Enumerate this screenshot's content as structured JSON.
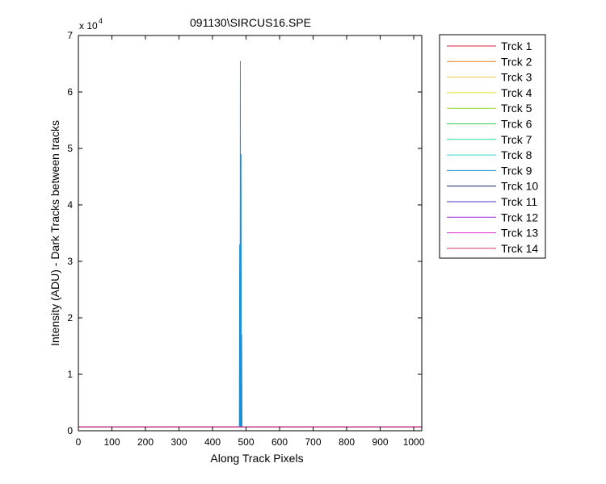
{
  "chart_data": {
    "type": "line",
    "title": "091130\\SIRCUS16.SPE",
    "xlabel": "Along Track Pixels",
    "ylabel": "Intensity (ADU) - Dark Tracks between tracks",
    "y_exponent_label": "x 10",
    "y_exponent": "4",
    "xlim": [
      0,
      1024
    ],
    "ylim": [
      0,
      70000
    ],
    "x_ticks": [
      0,
      100,
      200,
      300,
      400,
      500,
      600,
      700,
      800,
      900,
      1000
    ],
    "y_ticks": [
      0,
      10000,
      20000,
      30000,
      40000,
      50000,
      60000,
      70000
    ],
    "y_tick_labels": [
      "0",
      "1",
      "2",
      "3",
      "4",
      "5",
      "6",
      "7"
    ],
    "grid": false,
    "legend_position": "outside-top-right",
    "baseline_value": 700,
    "series": [
      {
        "name": "Trck 1",
        "color": "#dd1f3a"
      },
      {
        "name": "Trck 2",
        "color": "#f07d1e"
      },
      {
        "name": "Trck 3",
        "color": "#f5c542"
      },
      {
        "name": "Trck 4",
        "color": "#dfe22c"
      },
      {
        "name": "Trck 5",
        "color": "#8fdc2f"
      },
      {
        "name": "Trck 6",
        "color": "#2fd04a"
      },
      {
        "name": "Trck 7",
        "color": "#27d89a"
      },
      {
        "name": "Trck 8",
        "color": "#2fdbd7"
      },
      {
        "name": "Trck 9",
        "color": "#1b8fd8",
        "x": [
          480,
          481,
          482,
          483,
          484,
          485,
          486,
          487,
          488,
          489,
          490
        ],
        "y": [
          700,
          33000,
          700,
          65500,
          700,
          49000,
          700,
          17000,
          700,
          700,
          700
        ]
      },
      {
        "name": "Trck 10",
        "color": "#14226b"
      },
      {
        "name": "Trck 11",
        "color": "#4a2fc8"
      },
      {
        "name": "Trck 12",
        "color": "#9a25d8"
      },
      {
        "name": "Trck 13",
        "color": "#d82fd0"
      },
      {
        "name": "Trck 14",
        "color": "#d8316f"
      }
    ]
  }
}
